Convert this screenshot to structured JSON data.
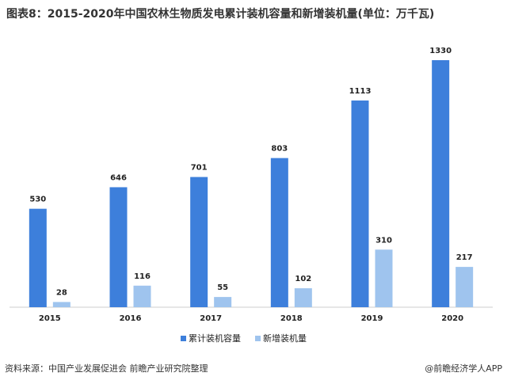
{
  "chart_data": {
    "type": "bar",
    "title": "图表8：2015-2020年中国农林生物质发电累计装机容量和新增装机量(单位：万千瓦)",
    "categories": [
      "2015",
      "2016",
      "2017",
      "2018",
      "2019",
      "2020"
    ],
    "series": [
      {
        "name": "累计装机容量",
        "color": "#3d7fdb",
        "values": [
          530,
          646,
          701,
          803,
          1113,
          1330
        ]
      },
      {
        "name": "新增装机量",
        "color": "#9fc4ee",
        "values": [
          28,
          116,
          55,
          102,
          310,
          217
        ]
      }
    ],
    "legend": "bottom",
    "source": "资料来源：中国产业发展促进会 前瞻产业研究院整理",
    "watermark": "@前瞻经济学人APP"
  }
}
